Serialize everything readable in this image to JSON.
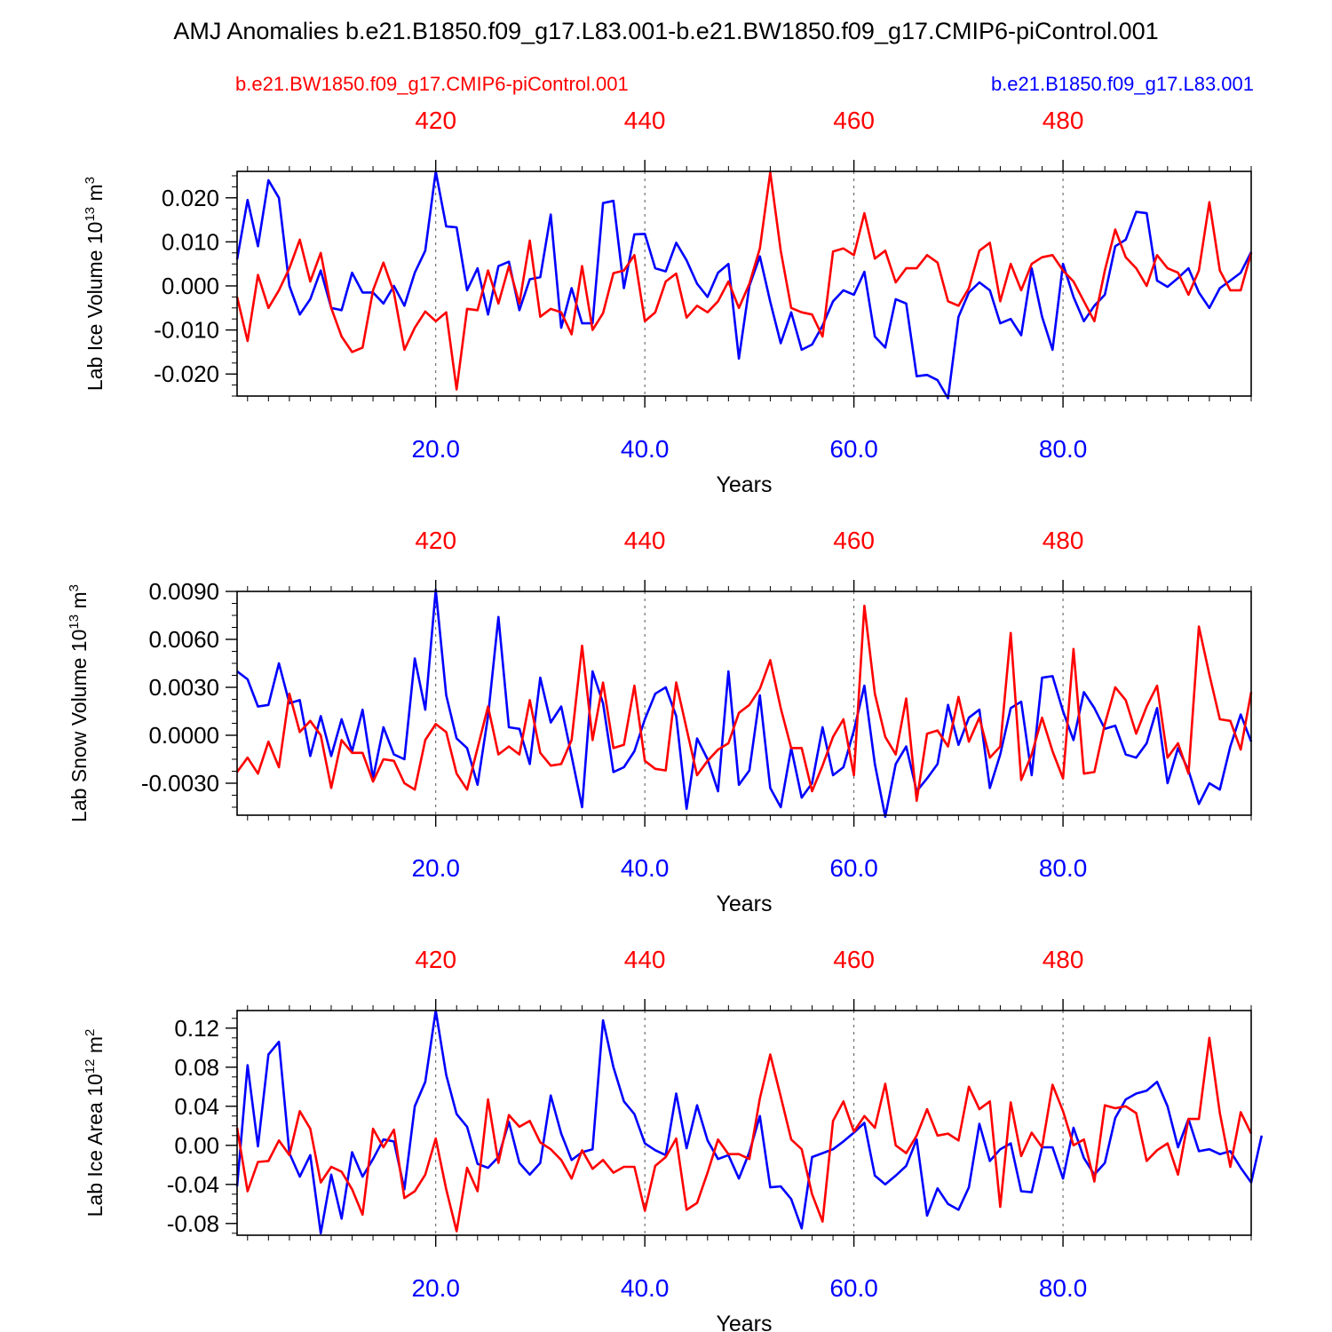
{
  "title": "AMJ Anomalies b.e21.B1850.f09_g17.L83.001-b.e21.BW1850.f09_g17.CMIP6-piControl.001",
  "legend": {
    "red_label": "b.e21.BW1850.f09_g17.CMIP6-piControl.001",
    "blue_label": "b.e21.B1850.f09_g17.L83.001"
  },
  "colors": {
    "red": "#ff0000",
    "blue": "#0000ff",
    "axis": "#000000",
    "grid": "#555555"
  },
  "chart_data": [
    {
      "type": "line",
      "ylabel": "Lab Ice Volume 10",
      "ylabel_sup": "13",
      "ylabel_unit": " m",
      "ylabel_unit_sup": "3",
      "xlabel": "Years",
      "xlim": [
        1,
        98
      ],
      "ylim": [
        -0.025,
        0.026
      ],
      "yticks": [
        -0.02,
        -0.01,
        0.0,
        0.01,
        0.02
      ],
      "ytick_labels": [
        "-0.020",
        "-0.010",
        "0.000",
        "0.010",
        "0.020"
      ],
      "yminor": 0.0025,
      "xticks_bottom": [
        20,
        40,
        60,
        80
      ],
      "xtick_labels_bottom": [
        "20.0",
        "40.0",
        "60.0",
        "80.0"
      ],
      "xtick_labels_top": [
        "420",
        "440",
        "460",
        "480"
      ],
      "series": [
        {
          "name": "b.e21.B1850.f09_g17.L83.001",
          "color": "blue",
          "x_start": 1,
          "values": [
            0.006,
            0.0195,
            0.009,
            0.024,
            0.02,
            0.0,
            -0.0065,
            -0.003,
            0.0035,
            -0.005,
            -0.0055,
            0.003,
            -0.0015,
            -0.0015,
            -0.004,
            0.0,
            -0.0045,
            0.003,
            0.008,
            0.026,
            0.0135,
            0.0133,
            -0.001,
            0.004,
            -0.0065,
            0.0045,
            0.0055,
            -0.0055,
            0.0015,
            0.002,
            0.0162,
            -0.0095,
            -0.0005,
            -0.0085,
            -0.0085,
            0.0188,
            0.0193,
            -0.0005,
            0.0117,
            0.0118,
            0.004,
            0.0033,
            0.0098,
            0.0058,
            0.0005,
            -0.0025,
            0.003,
            0.005,
            -0.0165,
            0.0,
            0.0067,
            -0.0036,
            -0.013,
            -0.006,
            -0.0145,
            -0.0133,
            -0.009,
            -0.0035,
            -0.001,
            -0.002,
            0.0032,
            -0.0115,
            -0.014,
            -0.003,
            -0.004,
            -0.0205,
            -0.0202,
            -0.0214,
            -0.0255,
            -0.007,
            -0.0015,
            0.0008,
            -0.001,
            -0.0085,
            -0.0075,
            -0.0112,
            0.004,
            -0.007,
            -0.0145,
            0.005,
            -0.0025,
            -0.008,
            -0.0045,
            -0.002,
            0.009,
            0.0105,
            0.0168,
            0.0165,
            0.0012,
            -0.0002,
            0.0018,
            0.004,
            -0.0015,
            -0.005,
            -0.0005,
            0.0012,
            0.003,
            0.0077
          ]
        },
        {
          "name": "b.e21.BW1850.f09_g17.CMIP6-piControl.001",
          "color": "red",
          "x_start": 1,
          "values": [
            -0.0025,
            -0.0125,
            0.0025,
            -0.005,
            -0.001,
            0.004,
            0.0105,
            0.001,
            0.0075,
            -0.005,
            -0.0115,
            -0.015,
            -0.014,
            -0.001,
            0.0053,
            -0.0015,
            -0.0145,
            -0.0095,
            -0.0058,
            -0.008,
            -0.006,
            -0.0235,
            -0.0052,
            -0.0055,
            0.0035,
            -0.004,
            0.0045,
            -0.004,
            0.0103,
            -0.007,
            -0.0052,
            -0.006,
            -0.011,
            0.0045,
            -0.01,
            -0.0062,
            0.0029,
            0.0035,
            0.007,
            -0.008,
            -0.006,
            0.001,
            0.0028,
            -0.0072,
            -0.0045,
            -0.006,
            -0.0035,
            0.001,
            -0.005,
            0.0005,
            0.0085,
            0.0258,
            0.008,
            -0.005,
            -0.006,
            -0.0065,
            -0.0115,
            0.0078,
            0.0085,
            0.007,
            0.0165,
            0.0062,
            0.008,
            0.0008,
            0.004,
            0.004,
            0.007,
            0.0053,
            -0.0035,
            -0.0045,
            -0.0005,
            0.008,
            0.0098,
            -0.0035,
            0.005,
            -0.001,
            0.005,
            0.0065,
            0.007,
            0.0035,
            0.001,
            -0.0035,
            -0.008,
            0.0035,
            0.0128,
            0.0065,
            0.004,
            0.0,
            0.007,
            0.004,
            0.003,
            -0.002,
            0.0035,
            0.019,
            0.0035,
            -0.001,
            -0.001,
            0.0075
          ]
        }
      ]
    },
    {
      "type": "line",
      "ylabel": "Lab Snow Volume 10",
      "ylabel_sup": "13",
      "ylabel_unit": " m",
      "ylabel_unit_sup": "3",
      "xlabel": "Years",
      "xlim": [
        1,
        98
      ],
      "ylim": [
        -0.005,
        0.009
      ],
      "yticks": [
        -0.003,
        0.0,
        0.003,
        0.006,
        0.009
      ],
      "ytick_labels": [
        "-0.0030",
        "0.0000",
        "0.0030",
        "0.0060",
        "0.0090"
      ],
      "yminor": 0.00075,
      "xticks_bottom": [
        20,
        40,
        60,
        80
      ],
      "xtick_labels_bottom": [
        "20.0",
        "40.0",
        "60.0",
        "80.0"
      ],
      "xtick_labels_top": [
        "420",
        "440",
        "460",
        "480"
      ],
      "series": [
        {
          "name": "b.e21.B1850.f09_g17.L83.001",
          "color": "blue",
          "x_start": 1,
          "values": [
            0.004,
            0.0035,
            0.0018,
            0.0019,
            0.0045,
            0.002,
            0.0022,
            -0.0013,
            0.0012,
            -0.0013,
            0.001,
            -0.001,
            0.0016,
            -0.0027,
            0.0005,
            -0.0012,
            -0.0015,
            0.0048,
            0.0016,
            0.0091,
            0.0025,
            -0.0002,
            -0.0008,
            -0.0031,
            0.0012,
            0.0074,
            0.0005,
            0.0004,
            -0.0018,
            0.0036,
            0.0008,
            0.0018,
            -0.0013,
            -0.0045,
            0.004,
            0.002,
            -0.0023,
            -0.002,
            -0.001,
            0.001,
            0.0026,
            0.003,
            0.0012,
            -0.0046,
            -0.0002,
            -0.0015,
            -0.0035,
            0.004,
            -0.0031,
            -0.0022,
            0.0025,
            -0.0033,
            -0.0045,
            -0.0008,
            -0.0039,
            -0.003,
            0.0005,
            -0.0025,
            -0.002,
            0.0003,
            0.0031,
            -0.0018,
            -0.0051,
            -0.0018,
            -0.0007,
            -0.0035,
            -0.0027,
            -0.0018,
            0.0019,
            -0.0006,
            0.0011,
            0.0016,
            -0.0033,
            -0.0012,
            0.0017,
            0.0021,
            -0.0025,
            0.0036,
            0.0037,
            0.0015,
            -0.0003,
            0.0027,
            0.0017,
            0.0004,
            0.0006,
            -0.0012,
            -0.0014,
            -0.0005,
            0.0017,
            -0.003,
            -0.0008,
            -0.0022,
            -0.0043,
            -0.003,
            -0.0034,
            -0.0007,
            0.0013,
            -0.0004
          ]
        },
        {
          "name": "b.e21.BW1850.f09_g17.CMIP6-piControl.001",
          "color": "red",
          "x_start": 1,
          "values": [
            -0.0023,
            -0.0014,
            -0.0024,
            -0.0004,
            -0.002,
            0.0026,
            0.0002,
            0.0009,
            0.0,
            -0.0033,
            -0.0003,
            -0.0011,
            -0.0011,
            -0.0029,
            -0.0015,
            -0.0016,
            -0.003,
            -0.0034,
            -0.0003,
            0.0007,
            0.0002,
            -0.0024,
            -0.0034,
            -0.0008,
            0.0018,
            -0.0012,
            -0.0007,
            -0.0012,
            0.0022,
            -0.0011,
            -0.0019,
            -0.0018,
            -0.0003,
            0.0056,
            -0.0003,
            0.0033,
            -0.0008,
            -0.0006,
            0.0031,
            -0.0016,
            -0.0021,
            -0.0022,
            0.0033,
            0.0004,
            -0.0025,
            -0.0016,
            -0.0009,
            -0.0005,
            0.0014,
            0.0019,
            0.0029,
            0.0047,
            0.0017,
            -0.0008,
            -0.0008,
            -0.0035,
            -0.0019,
            -0.0001,
            0.001,
            -0.0025,
            0.0081,
            0.0026,
            -0.0001,
            -0.0012,
            0.0023,
            -0.0041,
            0.0001,
            0.0003,
            -0.0007,
            0.0024,
            -0.0004,
            0.0011,
            -0.0014,
            -0.0007,
            0.0064,
            -0.0028,
            -0.0012,
            0.0011,
            -0.001,
            -0.0027,
            0.0054,
            -0.0024,
            -0.0023,
            0.0007,
            0.003,
            0.0022,
            0.0001,
            0.0018,
            0.0031,
            -0.0014,
            -0.0005,
            -0.0024,
            0.0068,
            0.0038,
            0.001,
            0.0009,
            -0.0009,
            0.0027
          ]
        }
      ]
    },
    {
      "type": "line",
      "ylabel": "Lab Ice Area 10",
      "ylabel_sup": "12",
      "ylabel_unit": " m",
      "ylabel_unit_sup": "2",
      "xlabel": "Years",
      "xlim": [
        1,
        98
      ],
      "ylim": [
        -0.092,
        0.138
      ],
      "yticks": [
        -0.08,
        -0.04,
        0.0,
        0.04,
        0.08,
        0.12
      ],
      "ytick_labels": [
        "-0.08",
        "-0.04",
        "0.00",
        "0.04",
        "0.08",
        "0.12"
      ],
      "yminor": 0.01,
      "xticks_bottom": [
        20,
        40,
        60,
        80
      ],
      "xtick_labels_bottom": [
        "20.0",
        "40.0",
        "60.0",
        "80.0"
      ],
      "xtick_labels_top": [
        "420",
        "440",
        "460",
        "480"
      ],
      "series": [
        {
          "name": "b.e21.B1850.f09_g17.L83.001",
          "color": "blue",
          "x_start": 1,
          "values": [
            -0.042,
            0.082,
            -0.001,
            0.093,
            0.106,
            -0.008,
            -0.032,
            -0.01,
            -0.09,
            -0.03,
            -0.075,
            -0.007,
            -0.032,
            -0.014,
            0.006,
            0.004,
            -0.045,
            0.04,
            0.065,
            0.138,
            0.072,
            0.032,
            0.019,
            -0.019,
            -0.023,
            -0.012,
            0.024,
            -0.018,
            -0.03,
            -0.018,
            0.051,
            0.012,
            -0.015,
            -0.007,
            -0.004,
            0.128,
            0.08,
            0.045,
            0.032,
            0.002,
            -0.005,
            -0.01,
            0.053,
            -0.003,
            0.041,
            0.005,
            -0.014,
            -0.01,
            -0.034,
            -0.007,
            0.03,
            -0.043,
            -0.042,
            -0.055,
            -0.085,
            -0.012,
            -0.008,
            -0.004,
            0.004,
            0.013,
            0.023,
            -0.031,
            -0.04,
            -0.031,
            -0.021,
            0.006,
            -0.072,
            -0.044,
            -0.06,
            -0.066,
            -0.043,
            0.022,
            -0.016,
            -0.004,
            0.002,
            -0.047,
            -0.048,
            -0.002,
            -0.002,
            -0.034,
            0.018,
            -0.013,
            -0.03,
            -0.018,
            0.028,
            0.047,
            0.053,
            0.056,
            0.065,
            0.04,
            -0.002,
            0.027,
            -0.006,
            -0.004,
            -0.009,
            -0.006,
            -0.023,
            -0.038,
            0.01
          ]
        },
        {
          "name": "b.e21.BW1850.f09_g17.CMIP6-piControl.001",
          "color": "red",
          "x_start": 1,
          "values": [
            0.018,
            -0.047,
            -0.017,
            -0.016,
            0.005,
            -0.01,
            0.035,
            0.017,
            -0.038,
            -0.022,
            -0.027,
            -0.045,
            -0.071,
            0.017,
            -0.002,
            0.016,
            -0.054,
            -0.047,
            -0.03,
            0.007,
            -0.045,
            -0.088,
            -0.023,
            -0.047,
            0.047,
            -0.018,
            0.031,
            0.019,
            0.025,
            0.003,
            -0.004,
            -0.015,
            -0.034,
            -0.005,
            -0.024,
            -0.015,
            -0.028,
            -0.022,
            -0.022,
            -0.067,
            -0.021,
            -0.012,
            0.007,
            -0.066,
            -0.059,
            -0.028,
            0.006,
            -0.009,
            -0.009,
            -0.014,
            0.048,
            0.093,
            0.05,
            0.006,
            -0.004,
            -0.05,
            -0.078,
            0.025,
            0.045,
            0.014,
            0.03,
            0.018,
            0.063,
            0.0,
            -0.008,
            0.01,
            0.037,
            0.01,
            0.012,
            0.005,
            0.06,
            0.037,
            0.045,
            -0.063,
            0.044,
            -0.011,
            0.013,
            -0.002,
            0.062,
            0.035,
            0.0,
            0.006,
            -0.037,
            0.041,
            0.038,
            0.04,
            0.033,
            -0.016,
            -0.005,
            0.002,
            -0.03,
            0.027,
            0.027,
            0.11,
            0.033,
            -0.022,
            0.034,
            0.012
          ]
        }
      ]
    }
  ]
}
